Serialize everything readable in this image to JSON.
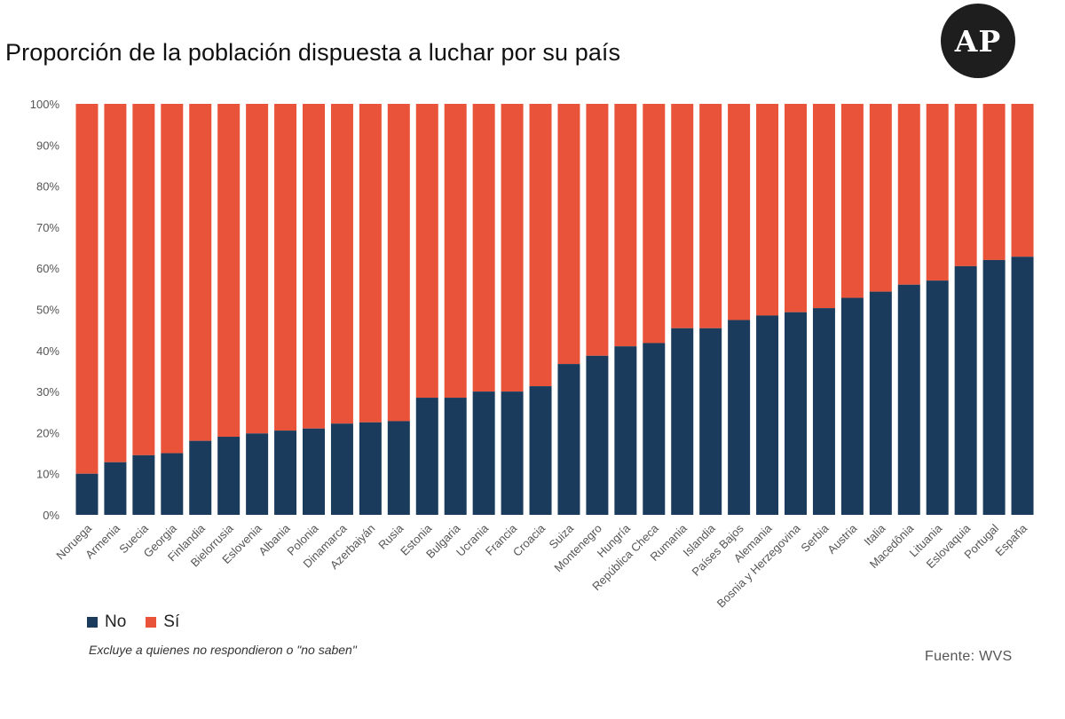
{
  "title": "Proporción de la población dispuesta a luchar por su país",
  "logo_text": "AP",
  "note": "Excluye a quienes no respondieron o \"no saben\"",
  "source": "Fuente:  WVS",
  "colors": {
    "no": "#1a3b5c",
    "si": "#e8533a",
    "grid": "#d9d9d9",
    "logo_bg": "#1e1e1e"
  },
  "chart_data": {
    "type": "bar",
    "stacked": true,
    "title": "Proporción de la población dispuesta a luchar por su país",
    "categories": [
      "Noruega",
      "Armenia",
      "Suecia",
      "Georgia",
      "Finlandia",
      "Bielorrusia",
      "Eslovenia",
      "Albania",
      "Polonia",
      "Dinamarca",
      "Azerbaiyán",
      "Rusia",
      "Estonia",
      "Bulgaria",
      "Ucrania",
      "Francia",
      "Croacia",
      "Suiza",
      "Montenegro",
      "Hungría",
      "República Checa",
      "Rumania",
      "Islandia",
      "Países Bajos",
      "Alemania",
      "Bosnia y Herzegovina",
      "Serbia",
      "Austria",
      "Italia",
      "Macedônia",
      "Lituania",
      "Eslovaquia",
      "Portugal",
      "España"
    ],
    "series": [
      {
        "name": "No",
        "values": [
          10,
          12.8,
          14.5,
          15,
          18,
          19,
          19.8,
          20.5,
          21,
          22.2,
          22.5,
          22.8,
          28.5,
          28.5,
          30,
          30,
          31.3,
          36.7,
          38.7,
          41,
          41.8,
          45.4,
          45.4,
          47.4,
          48.5,
          49.3,
          50.3,
          52.8,
          54.3,
          56,
          57,
          60.5,
          62,
          62.8
        ]
      },
      {
        "name": "Sí",
        "values": [
          90,
          87.2,
          85.5,
          85,
          82,
          81,
          80.2,
          79.5,
          79,
          77.8,
          77.5,
          77.2,
          71.5,
          71.5,
          70,
          70,
          68.7,
          63.3,
          61.3,
          59,
          58.2,
          54.6,
          54.6,
          52.6,
          51.5,
          50.7,
          49.7,
          47.2,
          45.7,
          44,
          43,
          39.5,
          38,
          37.2
        ]
      }
    ],
    "y_ticks": [
      "0%",
      "10%",
      "20%",
      "30%",
      "40%",
      "50%",
      "60%",
      "70%",
      "80%",
      "90%",
      "100%"
    ],
    "ylim": [
      0,
      100
    ],
    "grid": false,
    "legend_position": "bottom-left",
    "xlabel": "",
    "ylabel": ""
  }
}
